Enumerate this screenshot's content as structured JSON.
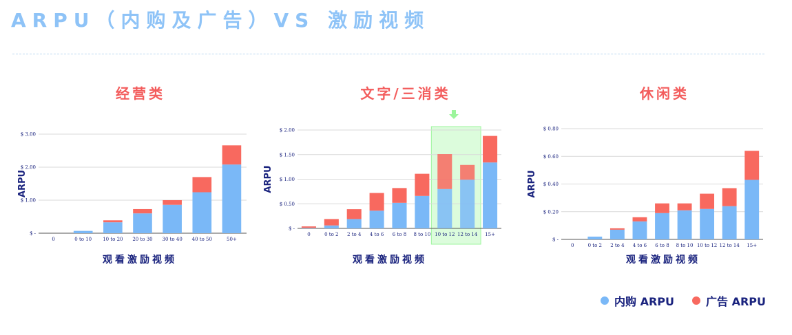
{
  "page": {
    "title": "ARPU（内购及广告）VS 激励视频"
  },
  "colors": {
    "iap": "#7ab8f7",
    "ad": "#f8695f",
    "title_red": "#f35c5c",
    "axis_label": "#1a237e",
    "highlight": "#9cf59c"
  },
  "legend": {
    "iap_label": "内购 ARPU",
    "ad_label": "广告 ARPU"
  },
  "chart_data": [
    {
      "type": "bar",
      "stacked": true,
      "title": "经营类",
      "xlabel": "观看激励视频",
      "ylabel": "ARPU",
      "categories": [
        "0",
        "0 to 10",
        "10 to 20",
        "20 to 30",
        "30 to 40",
        "40 to 50",
        "50+"
      ],
      "ylim": [
        0,
        3
      ],
      "yticks": [
        0,
        1,
        2,
        3
      ],
      "ytick_labels": [
        "$ -",
        "$ 1.00",
        "$ 2.00",
        "$ 3.00"
      ],
      "series": [
        {
          "name": "内购 ARPU",
          "values": [
            0.0,
            0.07,
            0.33,
            0.6,
            0.86,
            1.24,
            2.08
          ]
        },
        {
          "name": "广告 ARPU",
          "values": [
            0.0,
            0.0,
            0.06,
            0.13,
            0.14,
            0.46,
            0.58
          ]
        }
      ]
    },
    {
      "type": "bar",
      "stacked": true,
      "title": "文字/三消类",
      "xlabel": "观看激励视频",
      "ylabel": "ARPU",
      "categories": [
        "0",
        "0 to 2",
        "2 to 4",
        "4 to 6",
        "6 to 8",
        "8 to 10",
        "10 to 12",
        "12 to 14",
        "15+"
      ],
      "ylim": [
        0,
        2
      ],
      "yticks": [
        0,
        0.5,
        1,
        1.5,
        2
      ],
      "ytick_labels": [
        "$ -",
        "$ 0.50",
        "$ 1.00",
        "$ 1.50",
        "$ 2.00"
      ],
      "highlight_categories": [
        "10 to 12",
        "12 to 14"
      ],
      "series": [
        {
          "name": "内购 ARPU",
          "values": [
            0.01,
            0.06,
            0.19,
            0.36,
            0.52,
            0.66,
            0.8,
            0.99,
            1.34
          ]
        },
        {
          "name": "广告 ARPU",
          "values": [
            0.03,
            0.13,
            0.2,
            0.36,
            0.3,
            0.45,
            0.71,
            0.3,
            0.54
          ]
        }
      ]
    },
    {
      "type": "bar",
      "stacked": true,
      "title": "休闲类",
      "xlabel": "观看激励视频",
      "ylabel": "ARPU",
      "categories": [
        "0",
        "0 to 2",
        "2 to 4",
        "4 to 6",
        "6 to 8",
        "8 to 10",
        "10 to 12",
        "12 to 14",
        "15+"
      ],
      "ylim": [
        0,
        0.8
      ],
      "yticks": [
        0,
        0.2,
        0.4,
        0.6,
        0.8
      ],
      "ytick_labels": [
        "$ -",
        "$ 0.20",
        "$ 0.40",
        "$ 0.60",
        "$ 0.80"
      ],
      "series": [
        {
          "name": "内购 ARPU",
          "values": [
            0.0,
            0.02,
            0.07,
            0.13,
            0.19,
            0.21,
            0.22,
            0.24,
            0.43
          ]
        },
        {
          "name": "广告 ARPU",
          "values": [
            0.0,
            0.0,
            0.01,
            0.03,
            0.07,
            0.05,
            0.11,
            0.13,
            0.21
          ]
        }
      ]
    }
  ]
}
